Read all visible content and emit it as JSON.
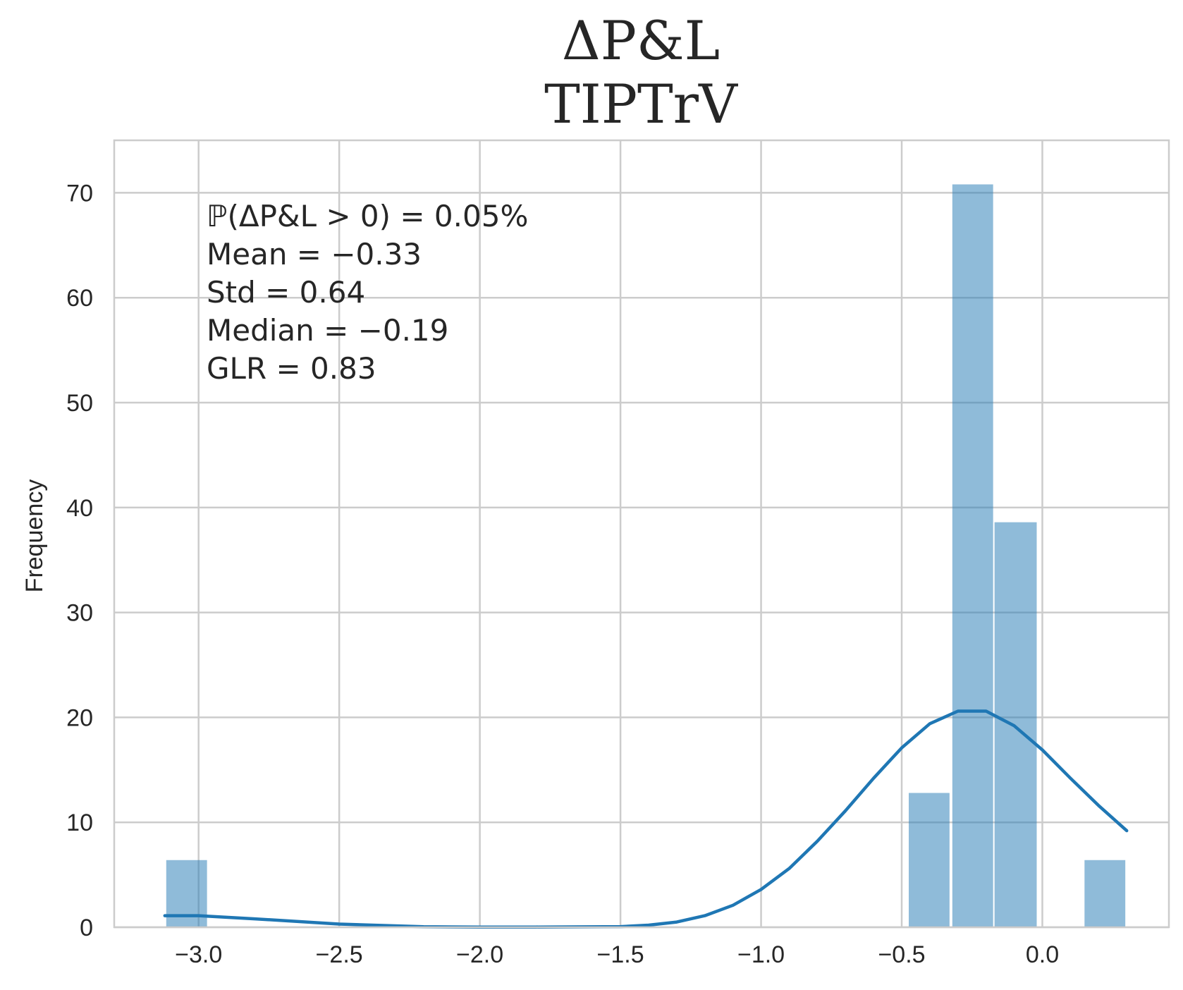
{
  "chart_data": {
    "type": "bar",
    "title": "ΔP&L",
    "subtitle": "TIPTrV",
    "xlabel": "",
    "ylabel": "Frequency",
    "xlim": [
      -3.3,
      0.45
    ],
    "ylim": [
      0,
      75
    ],
    "x_ticks": [
      -3.0,
      -2.5,
      -2.0,
      -1.5,
      -1.0,
      -0.5,
      0.0
    ],
    "x_tick_labels": [
      "−3.0",
      "−2.5",
      "−2.0",
      "−1.5",
      "−1.0",
      "−0.5",
      "0.0"
    ],
    "y_ticks": [
      0,
      10,
      20,
      30,
      40,
      50,
      60,
      70
    ],
    "y_tick_labels": [
      "0",
      "10",
      "20",
      "30",
      "40",
      "50",
      "60",
      "70"
    ],
    "grid": true,
    "bins": [
      {
        "x0": -3.115,
        "x1": -2.97,
        "count": 6.4
      },
      {
        "x0": -0.475,
        "x1": -0.33,
        "count": 12.8
      },
      {
        "x0": -0.32,
        "x1": -0.175,
        "count": 70.8
      },
      {
        "x0": -0.17,
        "x1": -0.02,
        "count": 38.6
      },
      {
        "x0": 0.15,
        "x1": 0.295,
        "count": 6.4
      }
    ],
    "kde": {
      "x": [
        -3.12,
        -3.0,
        -2.8,
        -2.5,
        -2.2,
        -2.0,
        -1.8,
        -1.5,
        -1.4,
        -1.3,
        -1.2,
        -1.1,
        -1.0,
        -0.9,
        -0.8,
        -0.7,
        -0.6,
        -0.5,
        -0.4,
        -0.3,
        -0.2,
        -0.1,
        0.0,
        0.1,
        0.2,
        0.3
      ],
      "y": [
        1.1,
        1.1,
        0.8,
        0.3,
        0.05,
        0.02,
        0.02,
        0.06,
        0.2,
        0.5,
        1.1,
        2.1,
        3.6,
        5.6,
        8.2,
        11.1,
        14.2,
        17.1,
        19.4,
        20.6,
        20.6,
        19.2,
        16.9,
        14.2,
        11.6,
        9.2
      ]
    },
    "annotations": [
      "ℙ(ΔP&L > 0) = 0.05%",
      "Mean = −0.33",
      "Std = 0.64",
      "Median = −0.19",
      "GLR = 0.83"
    ]
  }
}
